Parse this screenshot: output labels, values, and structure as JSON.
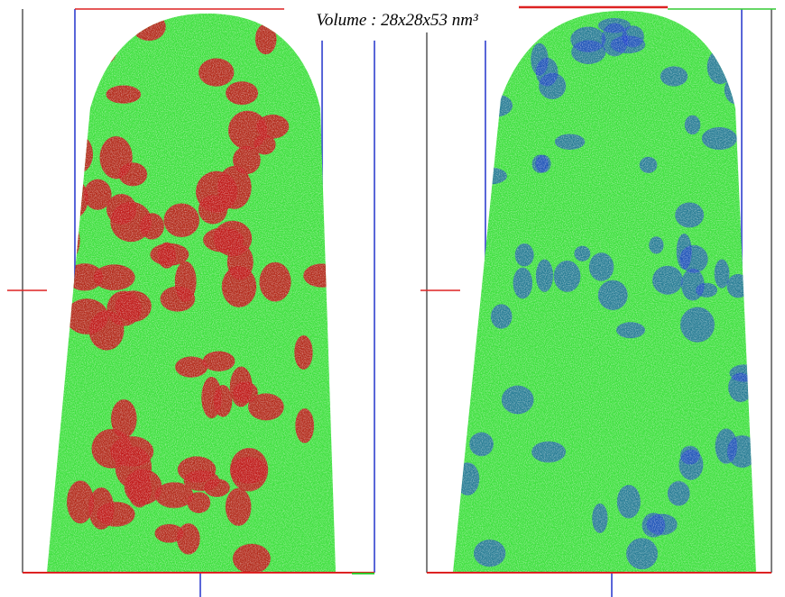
{
  "caption": "Volume : 28x28x53 nm³"
}
